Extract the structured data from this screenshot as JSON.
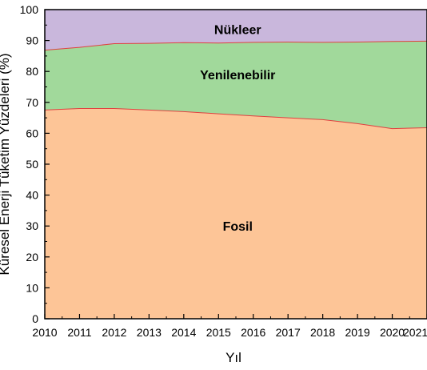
{
  "chart_data": {
    "type": "area",
    "stacked": true,
    "xlabel": "Yıl",
    "ylabel": "Küresel Enerji Tüketim Yüzdeleri (%)",
    "xlim": [
      2010,
      2021
    ],
    "ylim": [
      0,
      100
    ],
    "x_ticks": [
      "2010",
      "2011",
      "2012",
      "2013",
      "2014",
      "2015",
      "2016",
      "2017",
      "2018",
      "2019",
      "2020",
      "2021"
    ],
    "y_ticks": [
      "0",
      "10",
      "20",
      "30",
      "40",
      "50",
      "60",
      "70",
      "80",
      "90",
      "100"
    ],
    "x": [
      2010,
      2011,
      2012,
      2013,
      2014,
      2015,
      2016,
      2017,
      2018,
      2019,
      2020,
      2021
    ],
    "series": [
      {
        "name": "Fosil",
        "color": "#fdc597",
        "values": [
          67.5,
          68.0,
          68.0,
          67.5,
          67.0,
          66.3,
          65.6,
          65.0,
          64.4,
          63.1,
          61.5,
          61.8
        ]
      },
      {
        "name": "Yenilenebilir",
        "color": "#a1d99b",
        "values": [
          19.4,
          19.8,
          21.0,
          21.6,
          22.3,
          22.9,
          23.8,
          24.5,
          25.0,
          26.4,
          28.2,
          28.0
        ]
      },
      {
        "name": "Nükleer",
        "color": "#c9b7dc",
        "values": [
          13.1,
          12.2,
          11.0,
          10.9,
          10.7,
          10.8,
          10.6,
          10.5,
          10.6,
          10.5,
          10.3,
          10.2
        ]
      }
    ],
    "boundary_color": "#e04040",
    "grid": false,
    "legend": "none"
  }
}
